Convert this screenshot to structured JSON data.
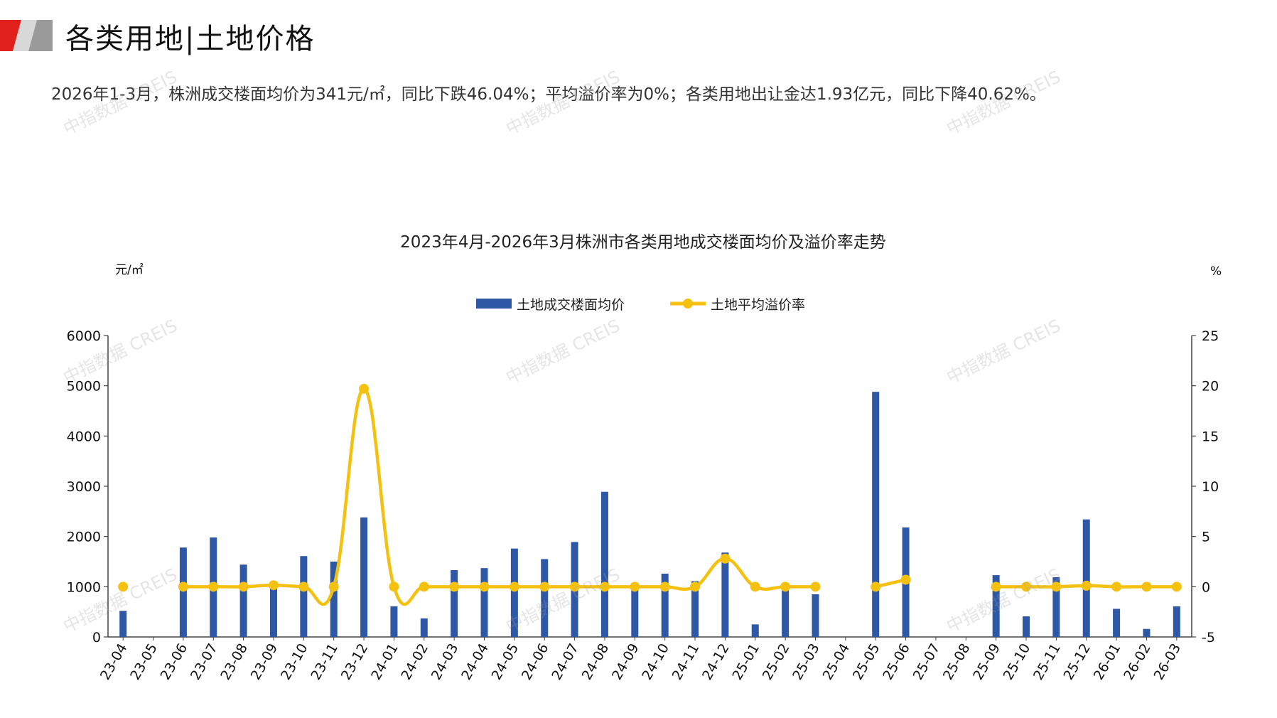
{
  "header": {
    "title": "各类用地|土地价格",
    "summary": "2026年1-3月，株洲成交楼面均价为341元/㎡，同比下跌46.04%；平均溢价率为0%；各类用地出让金达1.93亿元，同比下降40.62%。"
  },
  "watermark": {
    "text": "中指数据 CREIS"
  },
  "colors": {
    "bar": "#2E57A6",
    "line": "#F5C111",
    "logo_red": "#E0201B",
    "logo_gray": "#9A9A9A"
  },
  "chart_data": {
    "type": "bar",
    "title": "2023年4月-2026年3月株洲市各类用地成交楼面均价及溢价率走势",
    "y_left_unit": "元/㎡",
    "y_right_unit": "%",
    "y_left_range": [
      0,
      6000
    ],
    "y_left_ticks": [
      "0",
      "1000",
      "2000",
      "3000",
      "4000",
      "5000",
      "6000"
    ],
    "y_right_range": [
      -5,
      25
    ],
    "y_right_ticks": [
      "-5",
      "0",
      "5",
      "10",
      "15",
      "20",
      "25"
    ],
    "legend_position": "top-center",
    "categories": [
      "23-04",
      "23-05",
      "23-06",
      "23-07",
      "23-08",
      "23-09",
      "23-10",
      "23-11",
      "23-12",
      "24-01",
      "24-02",
      "24-03",
      "24-04",
      "24-05",
      "24-06",
      "24-07",
      "24-08",
      "24-09",
      "24-10",
      "24-11",
      "24-12",
      "25-01",
      "25-02",
      "25-03",
      "25-04",
      "25-05",
      "25-06",
      "25-07",
      "25-08",
      "25-09",
      "25-10",
      "25-11",
      "25-12",
      "26-01",
      "26-02",
      "26-03"
    ],
    "series": [
      {
        "name": "土地成交楼面均价",
        "type": "bar",
        "axis": "left",
        "values": [
          520,
          null,
          1780,
          1980,
          1440,
          1050,
          1610,
          1500,
          2380,
          610,
          370,
          1330,
          1370,
          1760,
          1550,
          1890,
          2890,
          1020,
          1260,
          1110,
          1680,
          250,
          1050,
          850,
          null,
          4880,
          2180,
          null,
          null,
          1230,
          410,
          1190,
          2340,
          560,
          160,
          610
        ]
      },
      {
        "name": "土地平均溢价率",
        "type": "line",
        "axis": "right",
        "values": [
          0,
          null,
          0,
          0,
          0,
          0.15,
          0,
          0,
          19.7,
          0,
          0,
          0,
          0,
          0,
          0,
          0,
          0,
          0,
          0,
          0,
          2.8,
          0,
          0,
          0,
          null,
          0,
          0.7,
          null,
          null,
          0,
          0,
          0,
          0.1,
          0,
          0,
          0
        ]
      }
    ]
  }
}
